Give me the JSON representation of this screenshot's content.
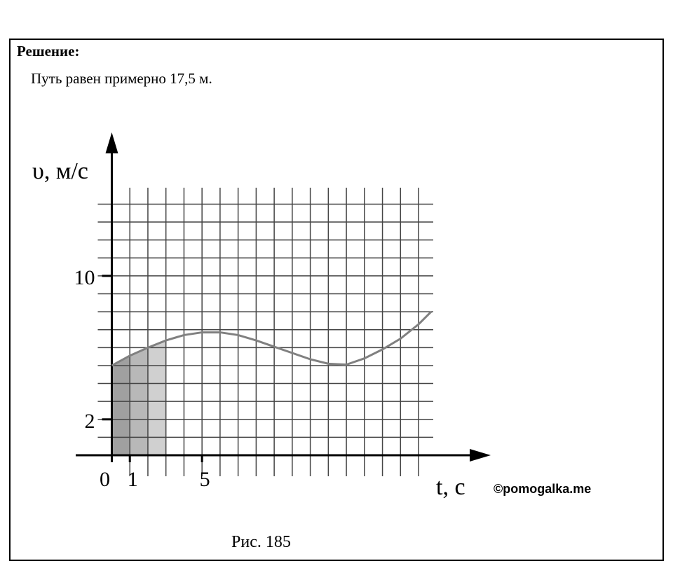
{
  "heading": "Решение:",
  "answer": "Путь равен примерно 17,5 м.",
  "caption": "Рис. 185",
  "watermark": "©pomogalka.me",
  "chart_data": {
    "type": "line",
    "y_label": "υ, м/с",
    "x_label": "t, с",
    "x": [
      0,
      1,
      2,
      3,
      4,
      5,
      6,
      7,
      8,
      9,
      10,
      11,
      12,
      13,
      14,
      15,
      16,
      17,
      17.7
    ],
    "values": [
      5,
      5.55,
      6.0,
      6.4,
      6.7,
      6.85,
      6.85,
      6.7,
      6.4,
      6.05,
      5.7,
      5.35,
      5.1,
      5.05,
      5.4,
      5.9,
      6.5,
      7.3,
      8
    ],
    "color": "#808080",
    "area_bins": [
      0,
      1,
      2,
      3
    ],
    "area_colors": [
      "#a0a0a0",
      "#b8b8b8",
      "#d0d0d0"
    ],
    "xlim": [
      -2,
      21
    ],
    "ylim": [
      0,
      18
    ],
    "xticks": [
      0,
      1,
      5
    ],
    "yticks": [
      2,
      10
    ],
    "grid": true
  }
}
